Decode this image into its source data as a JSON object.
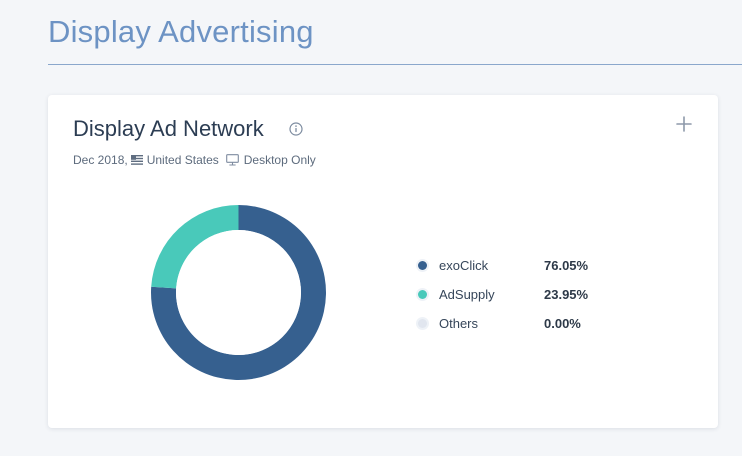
{
  "section": {
    "title": "Display Advertising"
  },
  "card": {
    "title": "Display Ad Network",
    "date": "Dec 2018,",
    "country": "United States",
    "device": "Desktop Only"
  },
  "icons": {
    "info": "info-circle-icon",
    "plus": "plus-icon",
    "flag": "us-flag-icon",
    "desktop": "desktop-icon"
  },
  "legend": [
    {
      "name": "exoClick",
      "value": "76.05%",
      "color": "#36608f"
    },
    {
      "name": "AdSupply",
      "value": "23.95%",
      "color": "#49c9ba"
    },
    {
      "name": "Others",
      "value": "0.00%",
      "color": "#e1e6ef"
    }
  ],
  "chart_data": {
    "type": "pie",
    "categories": [
      "exoClick",
      "AdSupply",
      "Others"
    ],
    "values": [
      76.05,
      23.95,
      0.0
    ],
    "colors": [
      "#36608f",
      "#49c9ba",
      "#e1e6ef"
    ],
    "legend_position": "right"
  }
}
